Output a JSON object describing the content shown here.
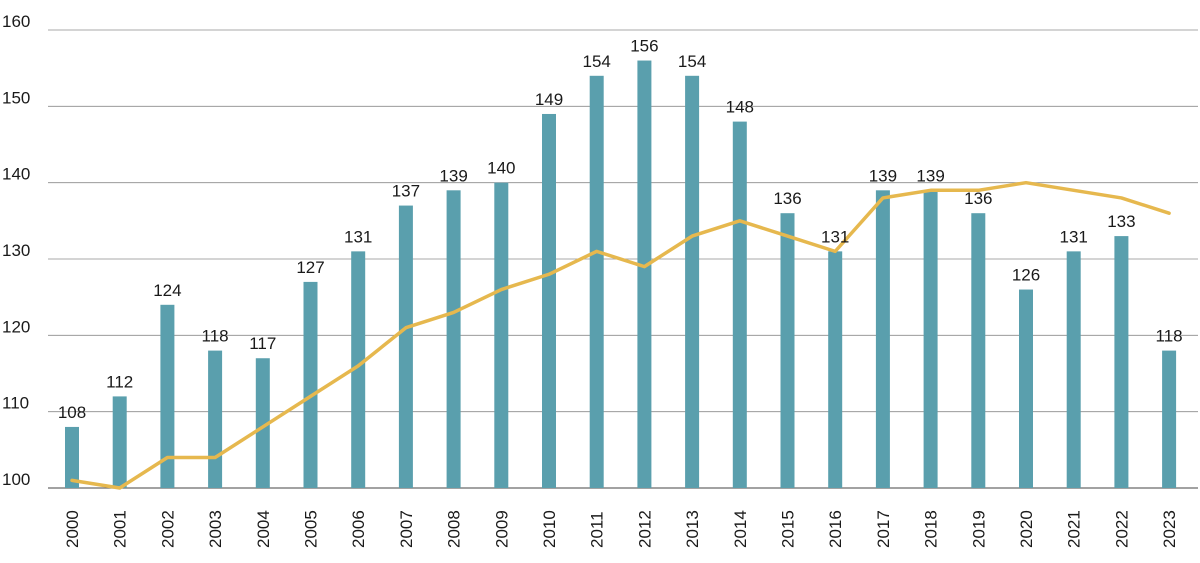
{
  "chart_data": {
    "type": "bar",
    "title": "",
    "xlabel": "",
    "ylabel": "",
    "ylim": [
      100,
      160
    ],
    "yticks": [
      100,
      110,
      120,
      130,
      140,
      150,
      160
    ],
    "grid": true,
    "categories": [
      "2000",
      "2001",
      "2002",
      "2003",
      "2004",
      "2005",
      "2006",
      "2007",
      "2008",
      "2009",
      "2010",
      "2011",
      "2012",
      "2013",
      "2014",
      "2015",
      "2016",
      "2017",
      "2018",
      "2019",
      "2020",
      "2021",
      "2022",
      "2023"
    ],
    "series": [
      {
        "type": "bar",
        "values": [
          108,
          112,
          124,
          118,
          117,
          127,
          131,
          137,
          139,
          140,
          149,
          154,
          156,
          154,
          148,
          136,
          131,
          139,
          139,
          136,
          126,
          131,
          133,
          118
        ],
        "color": "#5a9fad",
        "show_labels": true
      },
      {
        "type": "line",
        "values": [
          101,
          100,
          104,
          104,
          108,
          112,
          116,
          121,
          123,
          126,
          128,
          131,
          129,
          133,
          135,
          133,
          131,
          138,
          139,
          139,
          140,
          139,
          138,
          136
        ],
        "color": "#e6b84e",
        "show_labels": false
      }
    ]
  }
}
